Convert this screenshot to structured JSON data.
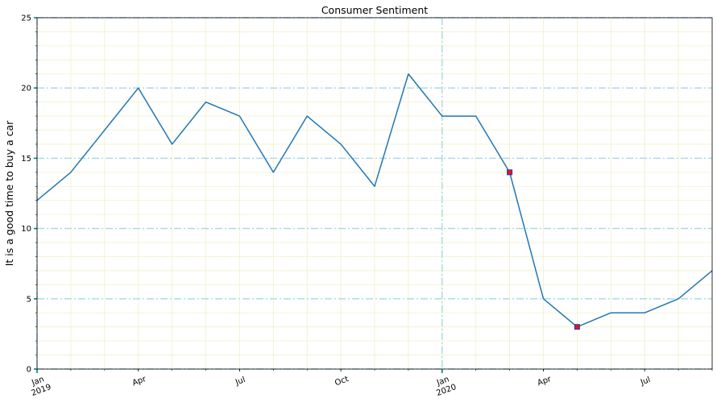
{
  "chart_data": {
    "type": "line",
    "title": "Consumer Sentiment",
    "xlabel": "",
    "ylabel": "It is a good time to buy a car",
    "ylim": [
      0,
      25
    ],
    "yticks": [
      0,
      5,
      10,
      15,
      20,
      25
    ],
    "x_start": "2019-01",
    "x_end": "2020-09",
    "x": [
      "2019-01",
      "2019-02",
      "2019-03",
      "2019-04",
      "2019-05",
      "2019-06",
      "2019-07",
      "2019-08",
      "2019-09",
      "2019-10",
      "2019-11",
      "2019-12",
      "2020-01",
      "2020-02",
      "2020-03",
      "2020-04",
      "2020-05",
      "2020-06",
      "2020-07",
      "2020-08",
      "2020-09"
    ],
    "series": [
      {
        "values": [
          12,
          14,
          17,
          20,
          16,
          19,
          18,
          14,
          18,
          16,
          13,
          21,
          18,
          18,
          14,
          5,
          3,
          4,
          4,
          5,
          7
        ]
      }
    ],
    "highlighted_points": [
      {
        "x": "2020-03",
        "y": 14
      },
      {
        "x": "2020-05",
        "y": 3
      }
    ],
    "xtick_labels": [
      {
        "x": "2019-01",
        "line1": "Jan",
        "line2": "2019"
      },
      {
        "x": "2019-04",
        "line1": "Apr",
        "line2": ""
      },
      {
        "x": "2019-07",
        "line1": "Jul",
        "line2": ""
      },
      {
        "x": "2019-10",
        "line1": "Oct",
        "line2": ""
      },
      {
        "x": "2020-01",
        "line1": "Jan",
        "line2": "2020"
      },
      {
        "x": "2020-04",
        "line1": "Apr",
        "line2": ""
      },
      {
        "x": "2020-07",
        "line1": "Jul",
        "line2": ""
      }
    ],
    "grid": true,
    "colors": {
      "line": "#1f77b4",
      "marker_fill": "#e8101e",
      "marker_edge": "#1f3fae",
      "major_grid": "#a6d8e6",
      "minor_grid": "#f1f0c9",
      "tick_accent": "#008080"
    }
  }
}
